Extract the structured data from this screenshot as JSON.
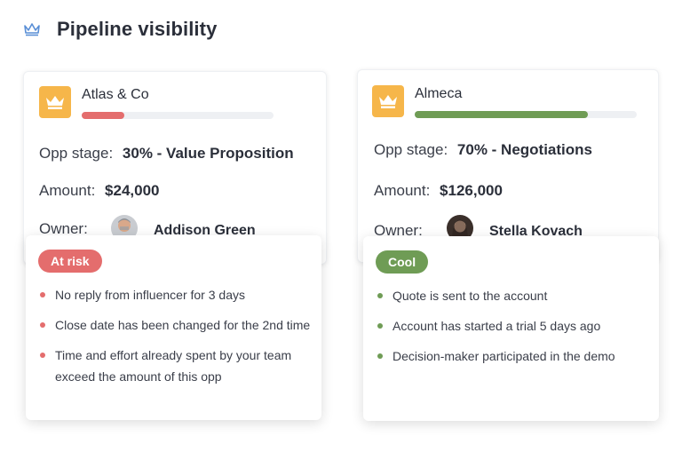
{
  "page": {
    "title": "Pipeline visibility"
  },
  "colors": {
    "risk": "#e46d6d",
    "cool": "#6f9c55",
    "logo": "#f6b64a",
    "header_icon": "#5a8fd6"
  },
  "opportunities": [
    {
      "company": "Atlas & Co",
      "progress_fraction": 0.22,
      "progress_color": "#e46d6d",
      "stage_label": "Opp stage:",
      "stage_value": "30% - Value Proposition",
      "amount_label": "Amount:",
      "amount_value": "$24,000",
      "owner_label": "Owner:",
      "owner_name": "Addison Green",
      "status_badge": "At risk",
      "notes": [
        "No reply from influencer for 3 days",
        "Close date has been changed for the 2nd time",
        "Time and effort already spent by your team exceed the amount of this opp"
      ]
    },
    {
      "company": "Almeca",
      "progress_fraction": 0.78,
      "progress_color": "#6f9c55",
      "stage_label": "Opp stage:",
      "stage_value": "70% - Negotiations",
      "amount_label": "Amount:",
      "amount_value": "$126,000",
      "owner_label": "Owner:",
      "owner_name": "Stella Kovach",
      "status_badge": "Cool",
      "notes": [
        "Quote is sent to the account",
        "Account has started a trial 5 days ago",
        "Decision-maker participated in the demo"
      ]
    }
  ]
}
